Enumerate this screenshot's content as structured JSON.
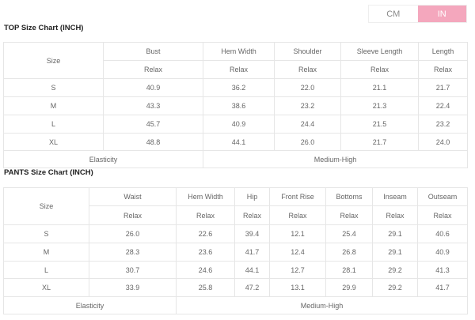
{
  "unit_toggle": {
    "options": [
      "CM",
      "IN"
    ],
    "selected": "IN",
    "accent": "#f4a7bd"
  },
  "top": {
    "title": "TOP Size Chart (INCH)",
    "size_label": "Size",
    "columns": [
      "Bust",
      "Hem Width",
      "Shoulder",
      "Sleeve Length",
      "Length"
    ],
    "fit": "Relax",
    "rows": [
      {
        "size": "S",
        "values": [
          "40.9",
          "36.2",
          "22.0",
          "21.1",
          "21.7"
        ]
      },
      {
        "size": "M",
        "values": [
          "43.3",
          "38.6",
          "23.2",
          "21.3",
          "22.4"
        ]
      },
      {
        "size": "L",
        "values": [
          "45.7",
          "40.9",
          "24.4",
          "21.5",
          "23.2"
        ]
      },
      {
        "size": "XL",
        "values": [
          "48.8",
          "44.1",
          "26.0",
          "21.7",
          "24.0"
        ]
      }
    ],
    "elasticity_label": "Elasticity",
    "elasticity_value": "Medium-High"
  },
  "pants": {
    "title": "PANTS Size Chart (INCH)",
    "size_label": "Size",
    "columns": [
      "Waist",
      "Hem Width",
      "Hip",
      "Front Rise",
      "Bottoms",
      "Inseam",
      "Outseam"
    ],
    "fit": "Relax",
    "rows": [
      {
        "size": "S",
        "values": [
          "26.0",
          "22.6",
          "39.4",
          "12.1",
          "25.4",
          "29.1",
          "40.6"
        ]
      },
      {
        "size": "M",
        "values": [
          "28.3",
          "23.6",
          "41.7",
          "12.4",
          "26.8",
          "29.1",
          "40.9"
        ]
      },
      {
        "size": "L",
        "values": [
          "30.7",
          "24.6",
          "44.1",
          "12.7",
          "28.1",
          "29.2",
          "41.3"
        ]
      },
      {
        "size": "XL",
        "values": [
          "33.9",
          "25.8",
          "47.2",
          "13.1",
          "29.9",
          "29.2",
          "41.7"
        ]
      }
    ],
    "elasticity_label": "Elasticity",
    "elasticity_value": "Medium-High"
  }
}
